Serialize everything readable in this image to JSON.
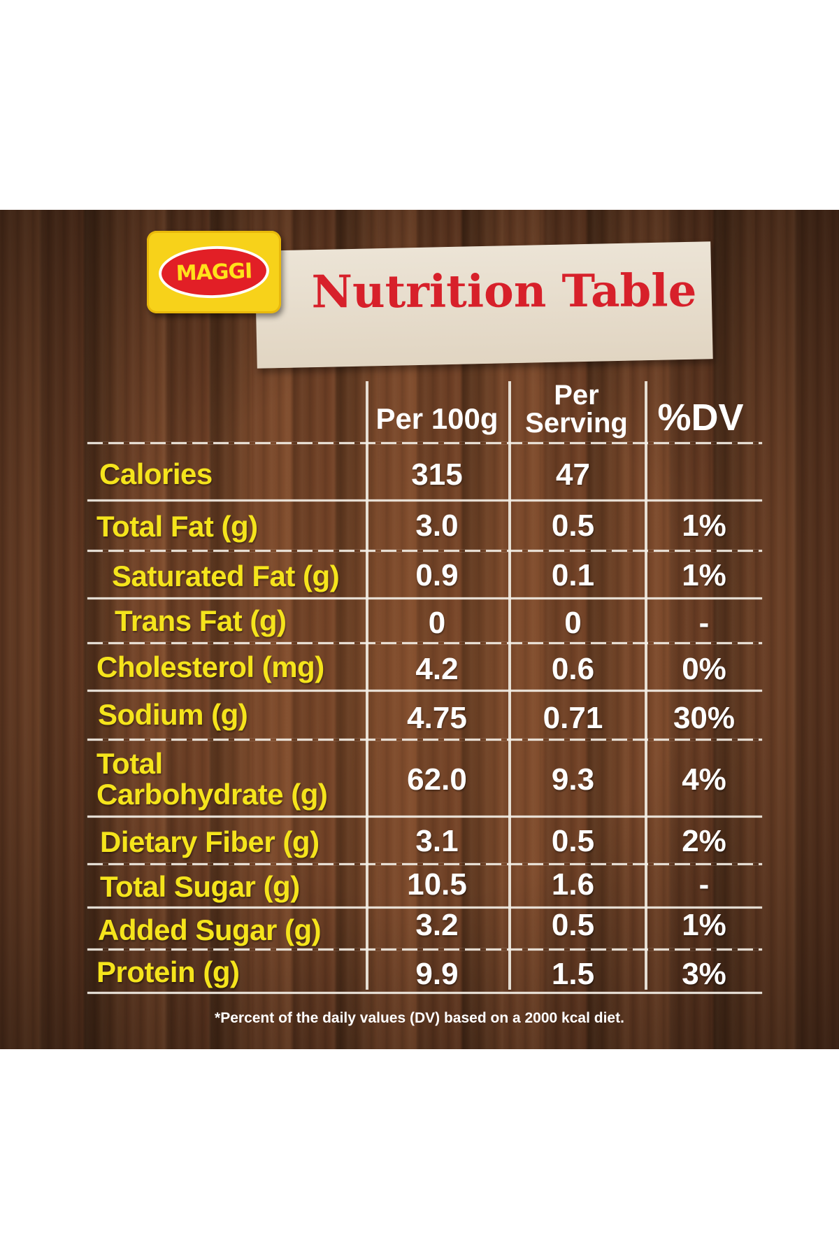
{
  "brand": {
    "logo_text": "MAGGI",
    "color": "#f7d21a",
    "accent": "#e21f26"
  },
  "title": "Nutrition Table",
  "columns": {
    "per100": "Per 100g",
    "per_serving_line1": "Per",
    "per_serving_line2": "Serving",
    "dv": "%DV"
  },
  "rows": [
    {
      "label": "Calories",
      "per100": "315",
      "serving": "47",
      "dv": ""
    },
    {
      "label": "Total Fat (g)",
      "per100": "3.0",
      "serving": "0.5",
      "dv": "1%"
    },
    {
      "label": "Saturated Fat (g)",
      "per100": "0.9",
      "serving": "0.1",
      "dv": "1%"
    },
    {
      "label": "Trans Fat (g)",
      "per100": "0",
      "serving": "0",
      "dv": "-"
    },
    {
      "label": "Cholesterol (mg)",
      "per100": "4.2",
      "serving": "0.6",
      "dv": "0%"
    },
    {
      "label": "Sodium (g)",
      "per100": "4.75",
      "serving": "0.71",
      "dv": "30%"
    },
    {
      "label_line1": "Total",
      "label_line2": "Carbohydrate (g)",
      "per100": "62.0",
      "serving": "9.3",
      "dv": "4%"
    },
    {
      "label": "Dietary Fiber (g)",
      "per100": "3.1",
      "serving": "0.5",
      "dv": "2%"
    },
    {
      "label": "Total Sugar (g)",
      "per100": "10.5",
      "serving": "1.6",
      "dv": "-"
    },
    {
      "label": "Added Sugar (g)",
      "per100": "3.2",
      "serving": "0.5",
      "dv": "1%"
    },
    {
      "label": "Protein (g)",
      "per100": "9.9",
      "serving": "1.5",
      "dv": "3%"
    }
  ],
  "footnote": "*Percent of the daily values (DV) based on a 2000 kcal diet.",
  "colors": {
    "label": "#f5e41c",
    "value": "#ffffff",
    "title": "#d7202a",
    "wood": "#6e4026"
  }
}
